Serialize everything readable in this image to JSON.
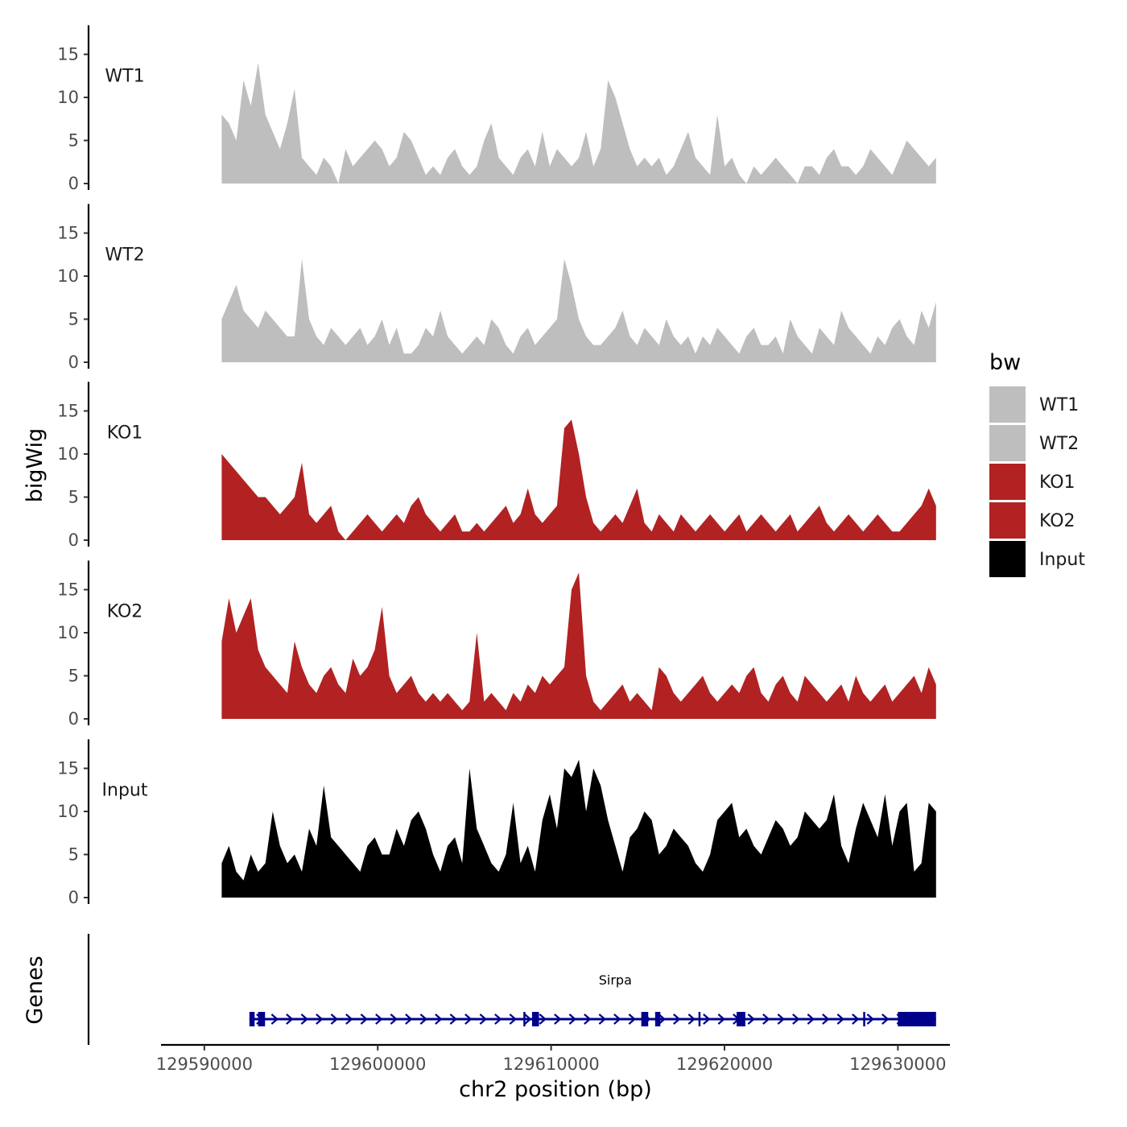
{
  "chart_data": {
    "type": "area",
    "xlabel": "chr2 position (bp)",
    "ylabel": "bigWig",
    "genes_label": "Genes",
    "xlim": [
      129587500,
      129633000
    ],
    "ylim": [
      0,
      18
    ],
    "x_ticks": [
      129590000,
      129600000,
      129610000,
      129620000,
      129630000
    ],
    "x_tick_labels": [
      "129590000",
      "129600000",
      "129610000",
      "129620000",
      "129630000"
    ],
    "y_ticks": [
      0,
      5,
      10,
      15
    ],
    "y_tick_labels": [
      "0",
      "5",
      "10",
      "15"
    ],
    "legend": {
      "title": "bw",
      "placement": "right",
      "entries": [
        {
          "name": "WT1",
          "color": "#bebebe"
        },
        {
          "name": "WT2",
          "color": "#bebebe"
        },
        {
          "name": "KO1",
          "color": "#b22222"
        },
        {
          "name": "KO2",
          "color": "#b22222"
        },
        {
          "name": "Input",
          "color": "#000000"
        }
      ]
    },
    "x_start": 129591000,
    "x_end": 129632200,
    "series": [
      {
        "name": "WT1",
        "color": "#bebebe",
        "values": [
          8,
          7,
          5,
          12,
          9,
          14,
          8,
          6,
          4,
          7,
          11,
          3,
          2,
          1,
          3,
          2,
          0,
          4,
          2,
          3,
          4,
          5,
          4,
          2,
          3,
          6,
          5,
          3,
          1,
          2,
          1,
          3,
          4,
          2,
          1,
          2,
          5,
          7,
          3,
          2,
          1,
          3,
          4,
          2,
          6,
          2,
          4,
          3,
          2,
          3,
          6,
          2,
          4,
          12,
          10,
          7,
          4,
          2,
          3,
          2,
          3,
          1,
          2,
          4,
          6,
          3,
          2,
          1,
          8,
          2,
          3,
          1,
          0,
          2,
          1,
          2,
          3,
          2,
          1,
          0,
          2,
          2,
          1,
          3,
          4,
          2,
          2,
          1,
          2,
          4,
          3,
          2,
          1,
          3,
          5,
          4,
          3,
          2,
          3
        ]
      },
      {
        "name": "WT2",
        "color": "#bebebe",
        "values": [
          5,
          7,
          9,
          6,
          5,
          4,
          6,
          5,
          4,
          3,
          3,
          12,
          5,
          3,
          2,
          4,
          3,
          2,
          3,
          4,
          2,
          3,
          5,
          2,
          4,
          1,
          1,
          2,
          4,
          3,
          6,
          3,
          2,
          1,
          2,
          3,
          2,
          5,
          4,
          2,
          1,
          3,
          4,
          2,
          3,
          4,
          5,
          12,
          9,
          5,
          3,
          2,
          2,
          3,
          4,
          6,
          3,
          2,
          4,
          3,
          2,
          5,
          3,
          2,
          3,
          1,
          3,
          2,
          4,
          3,
          2,
          1,
          3,
          4,
          2,
          2,
          3,
          1,
          5,
          3,
          2,
          1,
          4,
          3,
          2,
          6,
          4,
          3,
          2,
          1,
          3,
          2,
          4,
          5,
          3,
          2,
          6,
          4,
          7
        ]
      },
      {
        "name": "KO1",
        "color": "#b22222",
        "values": [
          10,
          9,
          8,
          7,
          6,
          5,
          5,
          4,
          3,
          4,
          5,
          9,
          3,
          2,
          3,
          4,
          1,
          0,
          1,
          2,
          3,
          2,
          1,
          2,
          3,
          2,
          4,
          5,
          3,
          2,
          1,
          2,
          3,
          1,
          1,
          2,
          1,
          2,
          3,
          4,
          2,
          3,
          6,
          3,
          2,
          3,
          4,
          13,
          14,
          10,
          5,
          2,
          1,
          2,
          3,
          2,
          4,
          6,
          2,
          1,
          3,
          2,
          1,
          3,
          2,
          1,
          2,
          3,
          2,
          1,
          2,
          3,
          1,
          2,
          3,
          2,
          1,
          2,
          3,
          1,
          2,
          3,
          4,
          2,
          1,
          2,
          3,
          2,
          1,
          2,
          3,
          2,
          1,
          1,
          2,
          3,
          4,
          6,
          4
        ]
      },
      {
        "name": "KO2",
        "color": "#b22222",
        "values": [
          9,
          14,
          10,
          12,
          14,
          8,
          6,
          5,
          4,
          3,
          9,
          6,
          4,
          3,
          5,
          6,
          4,
          3,
          7,
          5,
          6,
          8,
          13,
          5,
          3,
          4,
          5,
          3,
          2,
          3,
          2,
          3,
          2,
          1,
          2,
          10,
          2,
          3,
          2,
          1,
          3,
          2,
          4,
          3,
          5,
          4,
          5,
          6,
          15,
          17,
          5,
          2,
          1,
          2,
          3,
          4,
          2,
          3,
          2,
          1,
          6,
          5,
          3,
          2,
          3,
          4,
          5,
          3,
          2,
          3,
          4,
          3,
          5,
          6,
          3,
          2,
          4,
          5,
          3,
          2,
          5,
          4,
          3,
          2,
          3,
          4,
          2,
          5,
          3,
          2,
          3,
          4,
          2,
          3,
          4,
          5,
          3,
          6,
          4
        ]
      },
      {
        "name": "Input",
        "color": "#000000",
        "values": [
          4,
          6,
          3,
          2,
          5,
          3,
          4,
          10,
          6,
          4,
          5,
          3,
          8,
          6,
          13,
          7,
          6,
          5,
          4,
          3,
          6,
          7,
          5,
          5,
          8,
          6,
          9,
          10,
          8,
          5,
          3,
          6,
          7,
          4,
          15,
          8,
          6,
          4,
          3,
          5,
          11,
          4,
          6,
          3,
          9,
          12,
          8,
          15,
          14,
          16,
          10,
          15,
          13,
          9,
          6,
          3,
          7,
          8,
          10,
          9,
          5,
          6,
          8,
          7,
          6,
          4,
          3,
          5,
          9,
          10,
          11,
          7,
          8,
          6,
          5,
          7,
          9,
          8,
          6,
          7,
          10,
          9,
          8,
          9,
          12,
          6,
          4,
          8,
          11,
          9,
          7,
          12,
          6,
          10,
          11,
          3,
          4,
          11,
          10
        ]
      }
    ],
    "gene": {
      "name": "Sirpa",
      "strand": "+",
      "start": 129592600,
      "end": 129632200,
      "exons": [
        [
          129592600,
          129592900
        ],
        [
          129593100,
          129593500
        ],
        [
          129608400,
          129608500
        ],
        [
          129608900,
          129609300
        ],
        [
          129615200,
          129615600
        ],
        [
          129616000,
          129616300
        ],
        [
          129618500,
          129618600
        ],
        [
          129620700,
          129621200
        ],
        [
          129628000,
          129628100
        ],
        [
          129630000,
          129632200
        ]
      ]
    }
  }
}
